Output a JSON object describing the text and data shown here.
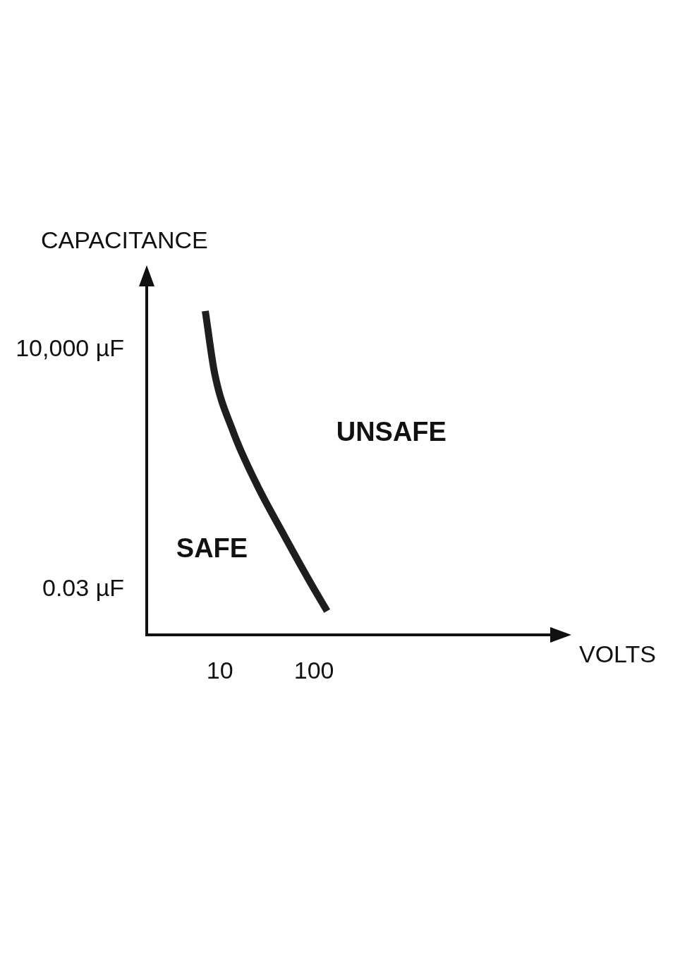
{
  "chart_data": {
    "type": "line",
    "xlabel": "VOLTS",
    "ylabel": "CAPACITANCE",
    "log": "xy",
    "xlim": [
      1.67,
      35900
    ],
    "ylim": [
      0.0027,
      350000
    ],
    "xticks": [
      10,
      100
    ],
    "yticks": [
      {
        "value": 0.03,
        "label": "0.03 µF"
      },
      {
        "value": 10000,
        "label": "10,000 µF"
      }
    ],
    "annotations": [
      "SAFE",
      "UNSAFE"
    ],
    "series": [
      {
        "color": "#1e1e1e",
        "x": [
          7,
          8.8,
          13.8,
          24.5,
          49,
          94,
          138
        ],
        "values": [
          76000,
          2800,
          130,
          8,
          0.49,
          0.039,
          0.0095
        ]
      }
    ]
  }
}
